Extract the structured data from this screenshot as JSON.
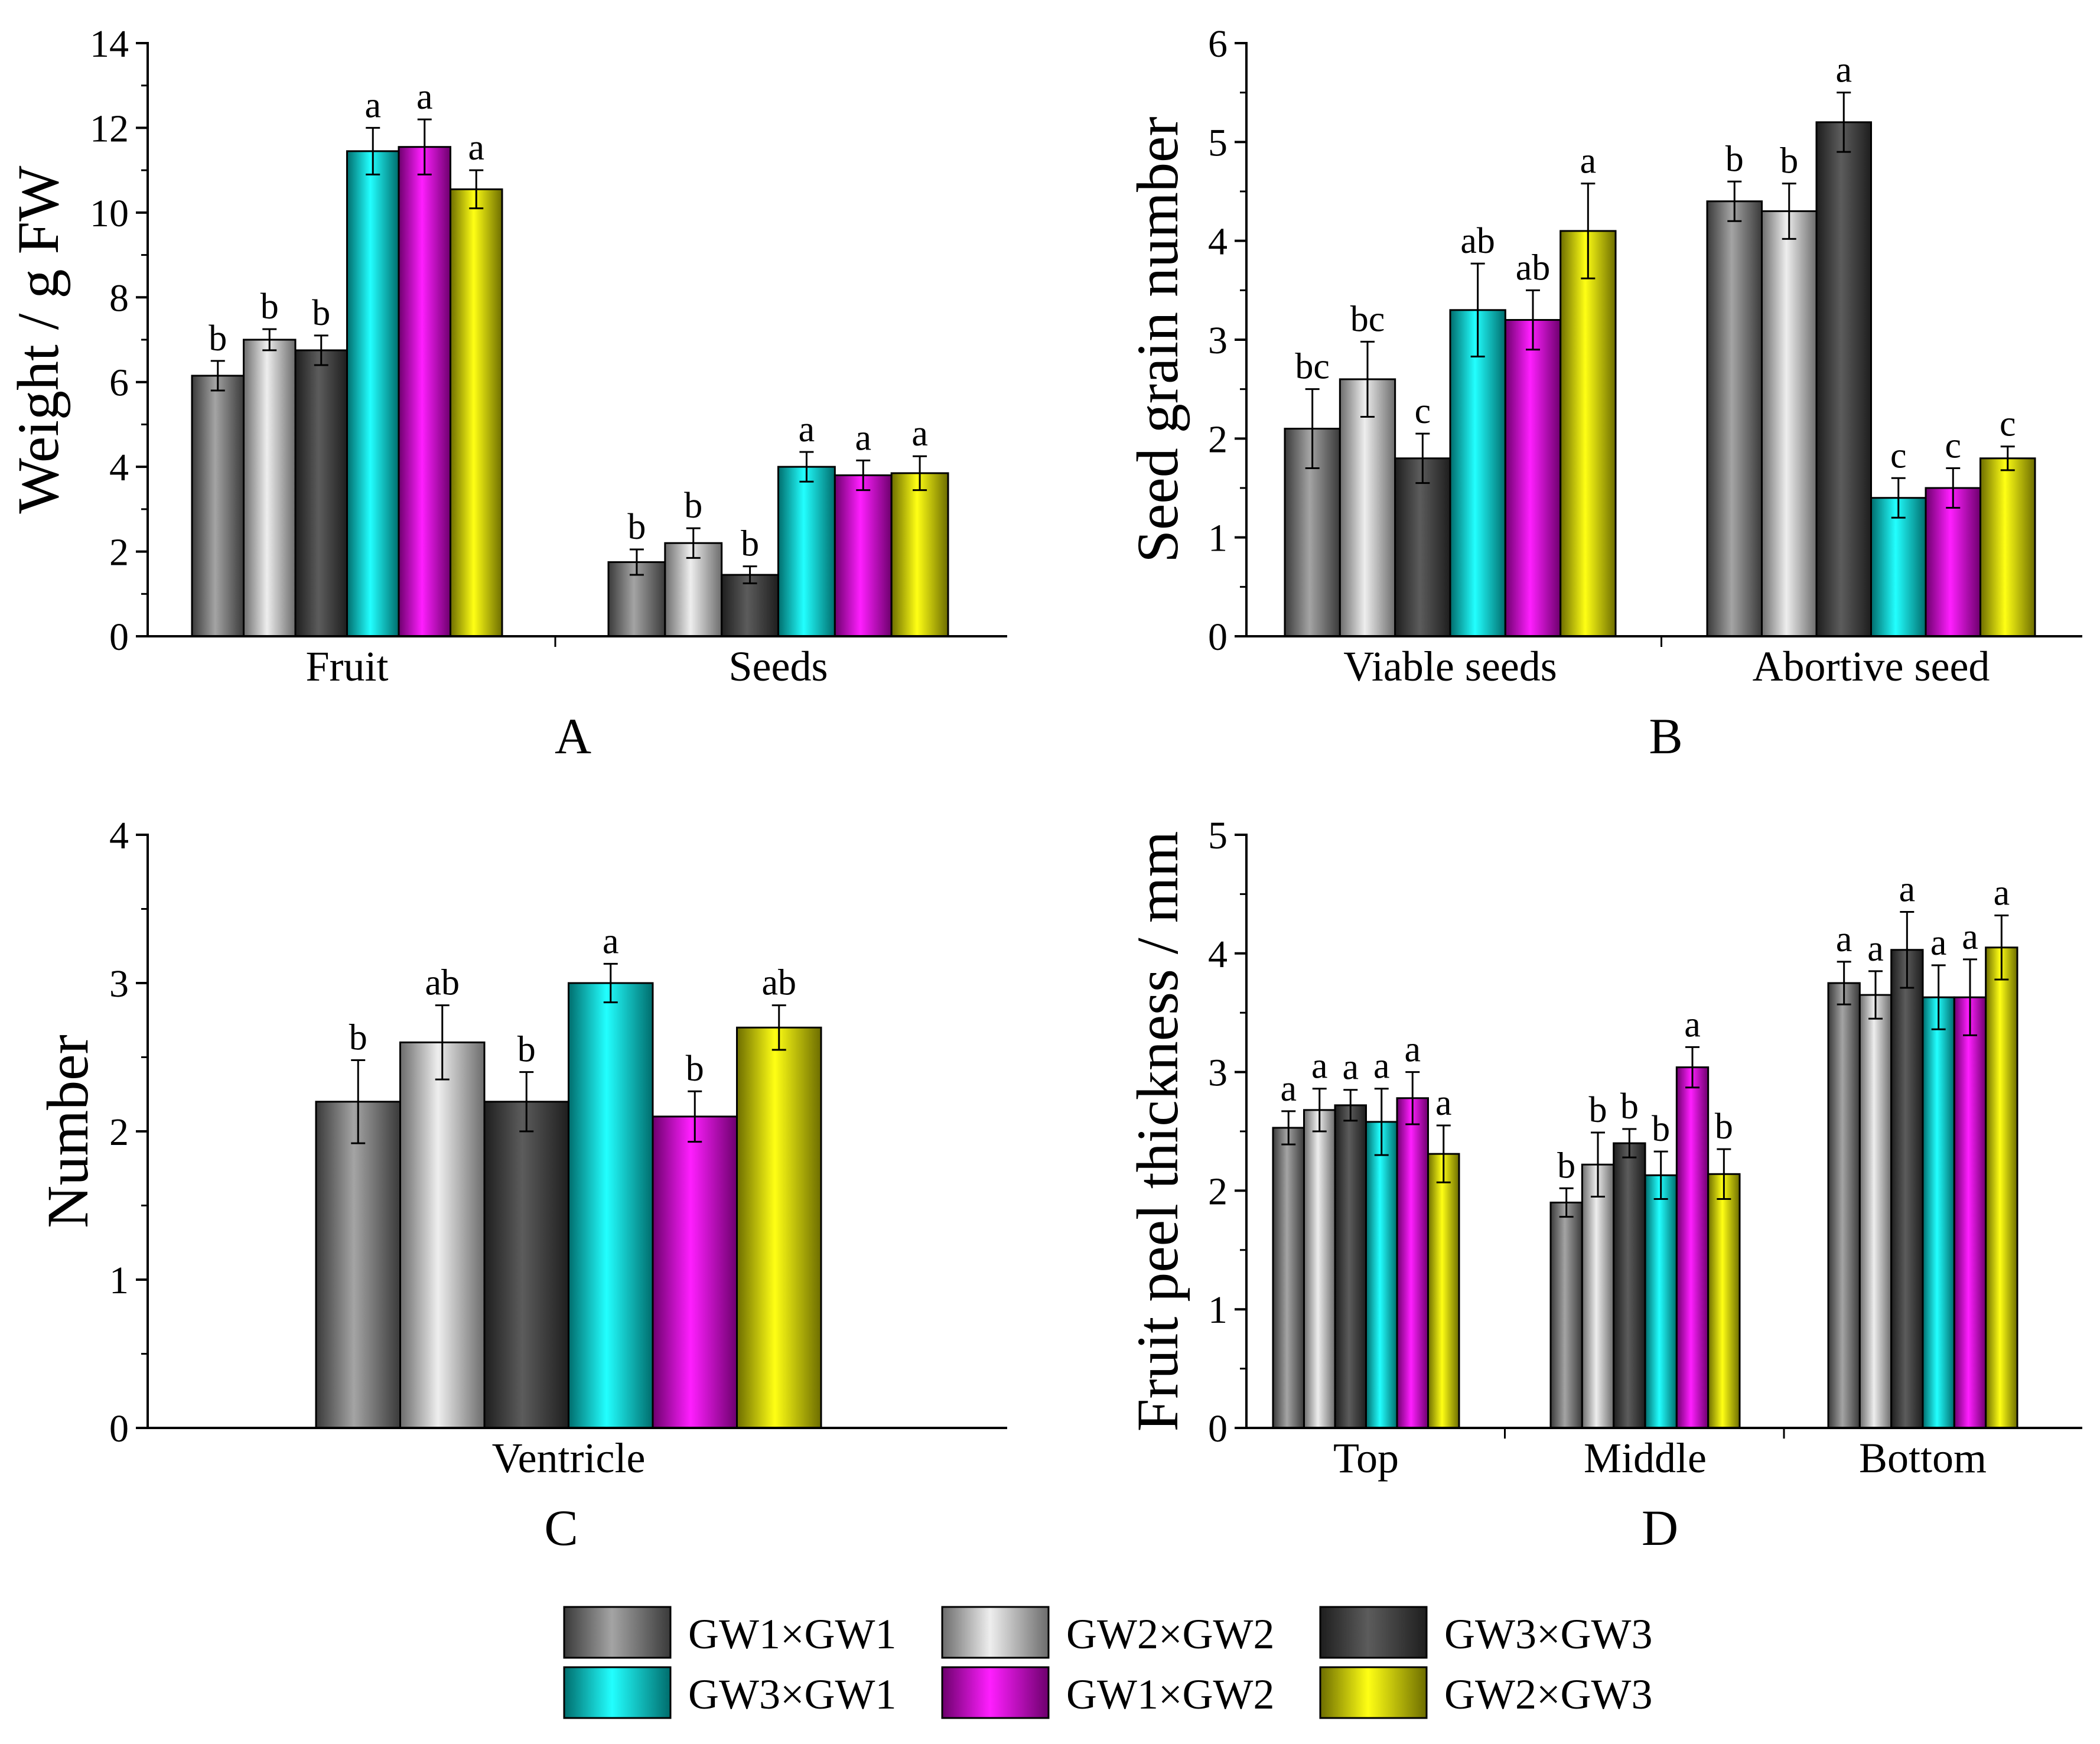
{
  "legend": {
    "entries": [
      {
        "name": "GW1×GW1",
        "style": "g1"
      },
      {
        "name": "GW2×GW2",
        "style": "g2"
      },
      {
        "name": "GW3×GW3",
        "style": "g3"
      },
      {
        "name": "GW3×GW1",
        "style": "cy"
      },
      {
        "name": "GW1×GW2",
        "style": "mg"
      },
      {
        "name": "GW2×GW3",
        "style": "yl"
      }
    ]
  },
  "chart_data": [
    {
      "id": "A",
      "type": "bar",
      "panel_label": "A",
      "ylabel": "Weight / g FW",
      "xlabel": "",
      "ylim": [
        0,
        14
      ],
      "yticks": [
        0,
        2,
        4,
        6,
        8,
        10,
        12,
        14
      ],
      "categories": [
        "Fruit",
        "Seeds"
      ],
      "series": [
        {
          "name": "GW1×GW1",
          "values": [
            6.15,
            1.75
          ],
          "errors": [
            0.35,
            0.3
          ],
          "letters": [
            "b",
            "b"
          ]
        },
        {
          "name": "GW2×GW2",
          "values": [
            7.0,
            2.2
          ],
          "errors": [
            0.25,
            0.35
          ],
          "letters": [
            "b",
            "b"
          ]
        },
        {
          "name": "GW3×GW3",
          "values": [
            6.75,
            1.45
          ],
          "errors": [
            0.35,
            0.2
          ],
          "letters": [
            "b",
            "b"
          ]
        },
        {
          "name": "GW3×GW1",
          "values": [
            11.45,
            4.0
          ],
          "errors": [
            0.55,
            0.35
          ],
          "letters": [
            "a",
            "a"
          ]
        },
        {
          "name": "GW1×GW2",
          "values": [
            11.55,
            3.8
          ],
          "errors": [
            0.65,
            0.35
          ],
          "letters": [
            "a",
            "a"
          ]
        },
        {
          "name": "GW2×GW3",
          "values": [
            10.55,
            3.85
          ],
          "errors": [
            0.45,
            0.4
          ],
          "letters": [
            "a",
            "a"
          ]
        }
      ]
    },
    {
      "id": "B",
      "type": "bar",
      "panel_label": "B",
      "ylabel": "Seed grain number",
      "xlabel": "",
      "ylim": [
        0,
        6
      ],
      "yticks": [
        0,
        1,
        2,
        3,
        4,
        5,
        6
      ],
      "categories": [
        "Viable seeds",
        "Abortive seed"
      ],
      "series": [
        {
          "name": "GW1×GW1",
          "values": [
            2.1,
            4.4
          ],
          "errors": [
            0.4,
            0.2
          ],
          "letters": [
            "bc",
            "b"
          ]
        },
        {
          "name": "GW2×GW2",
          "values": [
            2.6,
            4.3
          ],
          "errors": [
            0.38,
            0.28
          ],
          "letters": [
            "bc",
            "b"
          ]
        },
        {
          "name": "GW3×GW3",
          "values": [
            1.8,
            5.2
          ],
          "errors": [
            0.25,
            0.3
          ],
          "letters": [
            "c",
            "a"
          ]
        },
        {
          "name": "GW3×GW1",
          "values": [
            3.3,
            1.4
          ],
          "errors": [
            0.47,
            0.2
          ],
          "letters": [
            "ab",
            "c"
          ]
        },
        {
          "name": "GW1×GW2",
          "values": [
            3.2,
            1.5
          ],
          "errors": [
            0.3,
            0.2
          ],
          "letters": [
            "ab",
            "c"
          ]
        },
        {
          "name": "GW2×GW3",
          "values": [
            4.1,
            1.8
          ],
          "errors": [
            0.48,
            0.12
          ],
          "letters": [
            "a",
            "c"
          ]
        }
      ]
    },
    {
      "id": "C",
      "type": "bar",
      "panel_label": "C",
      "ylabel": "Number",
      "xlabel": "",
      "ylim": [
        0,
        4
      ],
      "yticks": [
        0,
        1,
        2,
        3,
        4
      ],
      "categories": [
        "Ventricle"
      ],
      "series": [
        {
          "name": "GW1×GW1",
          "values": [
            2.2
          ],
          "errors": [
            0.28
          ],
          "letters": [
            "b"
          ]
        },
        {
          "name": "GW2×GW2",
          "values": [
            2.6
          ],
          "errors": [
            0.25
          ],
          "letters": [
            "ab"
          ]
        },
        {
          "name": "GW3×GW3",
          "values": [
            2.2
          ],
          "errors": [
            0.2
          ],
          "letters": [
            "b"
          ]
        },
        {
          "name": "GW3×GW1",
          "values": [
            3.0
          ],
          "errors": [
            0.13
          ],
          "letters": [
            "a"
          ]
        },
        {
          "name": "GW1×GW2",
          "values": [
            2.1
          ],
          "errors": [
            0.17
          ],
          "letters": [
            "b"
          ]
        },
        {
          "name": "GW2×GW3",
          "values": [
            2.7
          ],
          "errors": [
            0.15
          ],
          "letters": [
            "ab"
          ]
        }
      ]
    },
    {
      "id": "D",
      "type": "bar",
      "panel_label": "D",
      "ylabel": "Fruit peel thickness / mm",
      "xlabel": "",
      "ylim": [
        0,
        5
      ],
      "yticks": [
        0,
        1,
        2,
        3,
        4,
        5
      ],
      "categories": [
        "Top",
        "Middle",
        "Bottom"
      ],
      "series": [
        {
          "name": "GW1×GW1",
          "values": [
            2.53,
            1.9,
            3.75
          ],
          "errors": [
            0.14,
            0.12,
            0.18
          ],
          "letters": [
            "a",
            "b",
            "a"
          ]
        },
        {
          "name": "GW2×GW2",
          "values": [
            2.68,
            2.22,
            3.65
          ],
          "errors": [
            0.18,
            0.27,
            0.2
          ],
          "letters": [
            "a",
            "b",
            "a"
          ]
        },
        {
          "name": "GW3×GW3",
          "values": [
            2.72,
            2.4,
            4.03
          ],
          "errors": [
            0.13,
            0.12,
            0.32
          ],
          "letters": [
            "a",
            "b",
            "a"
          ]
        },
        {
          "name": "GW3×GW1",
          "values": [
            2.58,
            2.13,
            3.63
          ],
          "errors": [
            0.28,
            0.2,
            0.27
          ],
          "letters": [
            "a",
            "b",
            "a"
          ]
        },
        {
          "name": "GW1×GW2",
          "values": [
            2.78,
            3.04,
            3.63
          ],
          "errors": [
            0.22,
            0.17,
            0.32
          ],
          "letters": [
            "a",
            "a",
            "a"
          ]
        },
        {
          "name": "GW2×GW3",
          "values": [
            2.31,
            2.14,
            4.05
          ],
          "errors": [
            0.24,
            0.21,
            0.27
          ],
          "letters": [
            "a",
            "b",
            "a"
          ]
        }
      ]
    }
  ]
}
